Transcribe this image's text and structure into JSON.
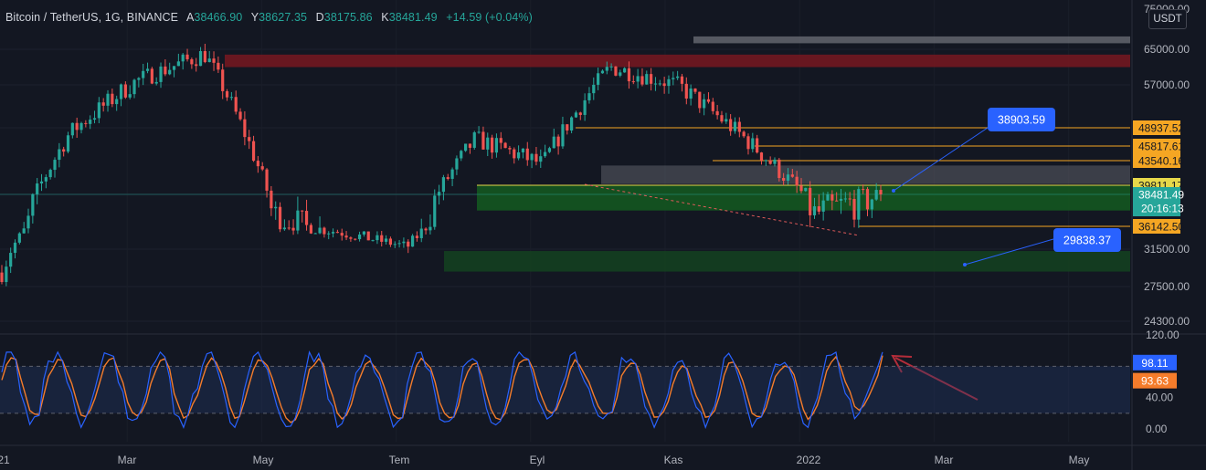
{
  "legend": {
    "symbol": "Bitcoin / TetherUS, 1G, BINANCE",
    "open_key": "A",
    "open": "38466.90",
    "high_key": "Y",
    "high": "38627.35",
    "low_key": "D",
    "low": "38175.86",
    "close_key": "K",
    "close": "38481.49",
    "change": "+14.59 (+0.04%)"
  },
  "price_unit": "USDT",
  "colors": {
    "background": "#131722",
    "up": "#26a69a",
    "down": "#ef5350",
    "stoch_k": "#2962ff",
    "stoch_d": "#f57c2b",
    "orange_line": "#f5a623",
    "yellow_line": "#e6d84a",
    "callout": "#2962ff"
  },
  "chart_data": [
    {
      "type": "candlestick",
      "title": "Bitcoin / TetherUS, 1G, BINANCE",
      "y_axis_ticks": [
        "75000.00",
        "65000.00",
        "57000.00",
        "31500.00",
        "27500.00",
        "24300.00"
      ],
      "x_axis_ticks": [
        "21",
        "Mar",
        "May",
        "Tem",
        "Eyl",
        "Kas",
        "2022",
        "Mar",
        "May"
      ],
      "close_path": [
        [
          "Ocak 2021",
          29000
        ],
        [
          "Şub 2021",
          48000
        ],
        [
          "Mar 2021",
          58000
        ],
        [
          "Nis 2021",
          64000
        ],
        [
          "May 2021",
          37000
        ],
        [
          "Haz 2021",
          35000
        ],
        [
          "Tem 2021",
          32000
        ],
        [
          "Ağu 2021",
          47000
        ],
        [
          "Eyl 2021",
          43000
        ],
        [
          "Eki 2021",
          61000
        ],
        [
          "Kas 2021",
          57000
        ],
        [
          "Ara 2021",
          47000
        ],
        [
          "Oca 2022",
          37000
        ],
        [
          "Şub 2022",
          38481.49
        ]
      ],
      "last_price": {
        "value": "38481.49",
        "countdown": "20:16:13"
      },
      "horizontal_levels": [
        {
          "value": "48937.52",
          "color": "orange"
        },
        {
          "value": "45817.61",
          "color": "orange"
        },
        {
          "value": "43540.16",
          "color": "orange"
        },
        {
          "value": "39811.17",
          "color": "yellow"
        },
        {
          "value": "36142.50",
          "color": "orange"
        }
      ],
      "zones": [
        {
          "from": 61000,
          "to": 63800,
          "color": "red"
        },
        {
          "from": 66500,
          "to": 68200,
          "color": "gray"
        },
        {
          "from": 40000,
          "to": 42800,
          "color": "gray"
        },
        {
          "from": 37300,
          "to": 39811.17,
          "color": "green"
        },
        {
          "from": 29100,
          "to": 31300,
          "color": "green"
        }
      ],
      "callouts": [
        "38903.59",
        "29838.37"
      ]
    },
    {
      "type": "line",
      "title": "",
      "y_axis_ticks": [
        "120.00",
        "40.00",
        "0.00"
      ],
      "series": [
        {
          "name": "",
          "last": "98.11",
          "color": "blue"
        },
        {
          "name": "",
          "last": "93.63",
          "color": "orange"
        }
      ],
      "bands": [
        20,
        80
      ]
    }
  ]
}
